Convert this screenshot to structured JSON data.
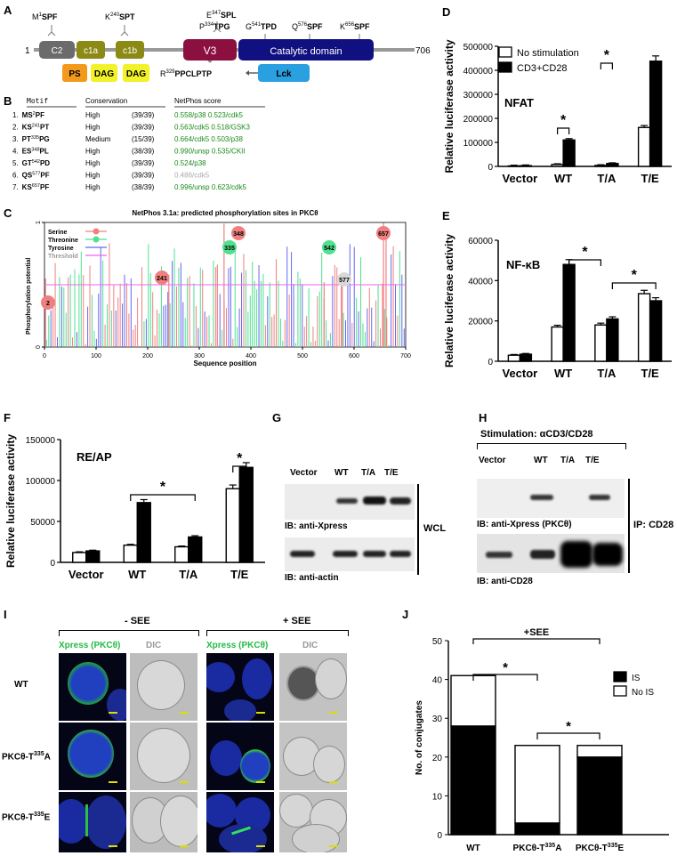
{
  "panels": {
    "A": "A",
    "B": "B",
    "C": "C",
    "D": "D",
    "E": "E",
    "F": "F",
    "G": "G",
    "H": "H",
    "I": "I",
    "J": "J"
  },
  "panelA": {
    "start": "1",
    "end": "706",
    "domains": [
      {
        "label": "C2",
        "color": "#6b6b6b"
      },
      {
        "label": "c1a",
        "color": "#8a8a14"
      },
      {
        "label": "c1b",
        "color": "#8a8a14"
      },
      {
        "label": "V3",
        "color": "#8b1040"
      },
      {
        "label": "Catalytic domain",
        "color": "#101080"
      }
    ],
    "subdomains": [
      {
        "label": "PS",
        "color": "#f39a1c"
      },
      {
        "label": "DAG",
        "color": "#f2f22a"
      },
      {
        "label": "DAG",
        "color": "#f2f22a"
      }
    ],
    "sites_top": [
      {
        "pre": "M",
        "num": "1",
        "post": "SPF"
      },
      {
        "pre": "K",
        "num": "240",
        "post": "SPT"
      },
      {
        "pre": "P",
        "num": "334",
        "post": "TPG"
      },
      {
        "pre": "E",
        "num": "347",
        "post": "SPL"
      },
      {
        "pre": "G",
        "num": "541",
        "post": "TPD"
      },
      {
        "pre": "Q",
        "num": "576",
        "post": "SPF"
      },
      {
        "pre": "K",
        "num": "656",
        "post": "SPF"
      }
    ],
    "lck_site": {
      "pre": "R",
      "num": "329",
      "post": "PPCLPTP"
    },
    "lck_label": "Lck"
  },
  "panelB": {
    "headers": [
      "Motif",
      "Conservation",
      "NetPhos score"
    ],
    "rows": [
      {
        "n": "1.",
        "m1": "MS",
        "sup": "2",
        "m2": "PF",
        "cons": "High",
        "count": "(39/39)",
        "score": "0.558/p38  0.523/cdk5",
        "grey": false
      },
      {
        "n": "2.",
        "m1": "KS",
        "sup": "241",
        "m2": "PT",
        "cons": "High",
        "count": "(39/39)",
        "score": "0.563/cdk5 0.518/GSK3",
        "grey": false
      },
      {
        "n": "3.",
        "m1": "PT",
        "sup": "335",
        "m2": "PG",
        "cons": "Medium",
        "count": "(15/39)",
        "score": "0.664/cdk5 0.503/p38",
        "grey": false
      },
      {
        "n": "4.",
        "m1": "ES",
        "sup": "348",
        "m2": "PL",
        "cons": "High",
        "count": "(38/39)",
        "score": "0.990/unsp 0.535/CKII",
        "grey": false
      },
      {
        "n": "5.",
        "m1": "GT",
        "sup": "542",
        "m2": "PD",
        "cons": "High",
        "count": "(39/39)",
        "score": "0.524/p38",
        "grey": false
      },
      {
        "n": "6.",
        "m1": "QS",
        "sup": "577",
        "m2": "PF",
        "cons": "High",
        "count": "(39/39)",
        "score": "0.486/cdk5",
        "grey": true
      },
      {
        "n": "7.",
        "m1": "KS",
        "sup": "657",
        "m2": "PF",
        "cons": "High",
        "count": "(38/39)",
        "score": "0.996/unsp 0.623/cdk5",
        "grey": false
      }
    ]
  },
  "panelC": {
    "title": "NetPhos 3.1a: predicted phosphorylation sites in PKCθ",
    "ylabel": "Phosphorylation potential",
    "xlabel": "Sequence position",
    "legend": [
      {
        "label": "Serine",
        "color": "#f08080"
      },
      {
        "label": "Threonine",
        "color": "#50e090"
      },
      {
        "label": "Tyrosine",
        "color": "#6666ee"
      },
      {
        "label": "Threshold",
        "color": "#ee66ee"
      }
    ],
    "markers": [
      {
        "label": "2",
        "x": 2,
        "color": "#f08080"
      },
      {
        "label": "241",
        "x": 241,
        "color": "#f08080"
      },
      {
        "label": "335",
        "x": 335,
        "color": "#50e090"
      },
      {
        "label": "348",
        "x": 348,
        "color": "#f08080"
      },
      {
        "label": "542",
        "x": 542,
        "color": "#50e090"
      },
      {
        "label": "577",
        "x": 577,
        "color": "#d8d8d8"
      },
      {
        "label": "657",
        "x": 657,
        "color": "#f08080"
      }
    ]
  },
  "chart_data": [
    {
      "id": "D",
      "type": "bar",
      "title": "NFAT",
      "ylabel": "Relative luciferase activity",
      "categories": [
        "Vector",
        "WT",
        "T/A",
        "T/E"
      ],
      "ylim": [
        0,
        500000
      ],
      "yticks": [
        "0",
        "100000",
        "200000",
        "300000",
        "400000",
        "500000"
      ],
      "series": [
        {
          "name": "No stimulation",
          "values": [
            2000,
            8000,
            4000,
            162000
          ]
        },
        {
          "name": "CD3+CD28",
          "values": [
            3000,
            110000,
            12000,
            438000
          ]
        }
      ],
      "sig": [
        {
          "from": 2,
          "to": 3,
          "label": "*"
        },
        {
          "from": 4,
          "to": 5,
          "label": "*"
        }
      ]
    },
    {
      "id": "E",
      "type": "bar",
      "title": "NF-κB",
      "ylabel": "Relative luciferase activity",
      "categories": [
        "Vector",
        "WT",
        "T/A",
        "T/E"
      ],
      "ylim": [
        0,
        60000
      ],
      "yticks": [
        "0",
        "20000",
        "40000",
        "60000"
      ],
      "series": [
        {
          "name": "No stimulation",
          "values": [
            3000,
            17000,
            18000,
            33500
          ]
        },
        {
          "name": "CD3+CD28",
          "values": [
            3500,
            48000,
            21000,
            30000
          ]
        }
      ],
      "sig": [
        {
          "from": 3,
          "to": 4,
          "label": "*"
        },
        {
          "from": 5,
          "to": 7,
          "label": "*"
        }
      ]
    },
    {
      "id": "F",
      "type": "bar",
      "title": "RE/AP",
      "ylabel": "Relative luciferase activity",
      "categories": [
        "Vector",
        "WT",
        "T/A",
        "T/E"
      ],
      "ylim": [
        0,
        150000
      ],
      "yticks": [
        "0",
        "50000",
        "100000",
        "150000"
      ],
      "series": [
        {
          "name": "No stimulation",
          "values": [
            12000,
            21000,
            19000,
            90000
          ]
        },
        {
          "name": "CD3+CD28",
          "values": [
            14000,
            73000,
            31000,
            116000
          ]
        }
      ],
      "sig": [
        {
          "from": 2,
          "to": 5,
          "label": "*"
        },
        {
          "from": 6,
          "to": 7,
          "label": "*"
        }
      ]
    },
    {
      "id": "J",
      "type": "stacked-bar",
      "ylabel": "No. of conjugates",
      "categories": [
        "WT",
        "PKCθ-T335A",
        "PKCθ-T335E"
      ],
      "ylim": [
        0,
        50
      ],
      "yticks": [
        "0",
        "10",
        "20",
        "30",
        "40",
        "50"
      ],
      "series": [
        {
          "name": "IS",
          "values": [
            28,
            3,
            20
          ]
        },
        {
          "name": "No IS",
          "values": [
            13,
            20,
            3
          ]
        }
      ],
      "annotation": "+SEE"
    }
  ],
  "panelG": {
    "lanes": [
      "Vector",
      "WT",
      "T/A",
      "T/E"
    ],
    "ib1": "IB: anti-Xpress",
    "ib2": "IB: anti-actin",
    "side": "WCL"
  },
  "panelH": {
    "stim": "Stimulation: αCD3/CD28",
    "lanes": [
      "Vector",
      "WT",
      "T/A",
      "T/E"
    ],
    "ib1": "IB: anti-Xpress (PKCθ)",
    "ib2": "IB: anti-CD28",
    "side": "IP: CD28"
  },
  "panelI": {
    "minus": "- SEE",
    "plus": "+ SEE",
    "col_green": "Xpress (PKCθ)",
    "col_dic": "DIC",
    "rows": [
      "WT",
      "PKCθ-T335A",
      "PKCθ-T335E"
    ]
  },
  "panelJ": {
    "legend": [
      "IS",
      "No IS"
    ],
    "xlabels": [
      {
        "pre": "WT",
        "sup": "",
        "post": ""
      },
      {
        "pre": "PKCθ-T",
        "sup": "335",
        "post": "A"
      },
      {
        "pre": "PKCθ-T",
        "sup": "335",
        "post": "E"
      }
    ]
  }
}
